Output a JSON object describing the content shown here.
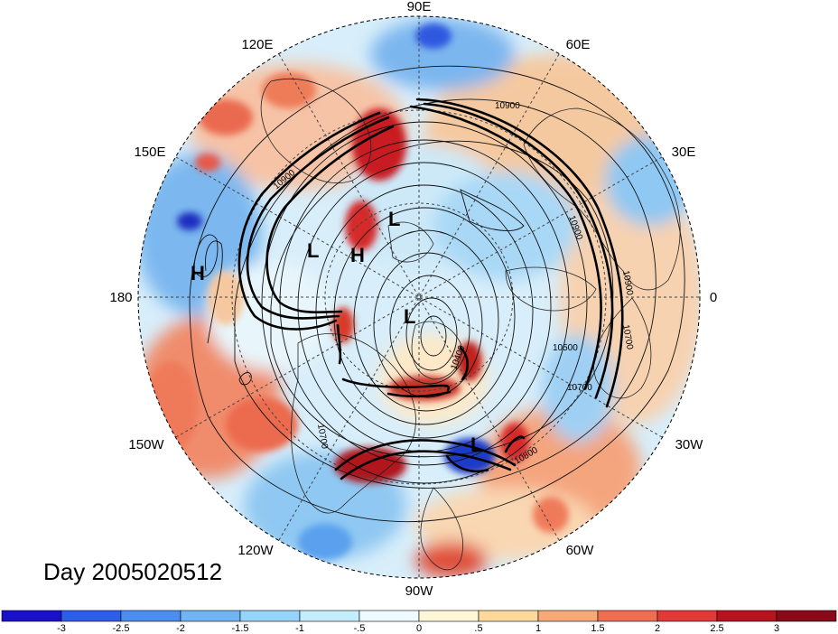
{
  "title": "Day 2005020512",
  "longitude_labels": [
    "90E",
    "60E",
    "30E",
    "0",
    "30W",
    "60W",
    "90W",
    "120W",
    "150W",
    "180",
    "150E",
    "120E"
  ],
  "pressure_markers": [
    "L",
    "L",
    "H",
    "L",
    "H",
    "L"
  ],
  "contour_labels": [
    "10900",
    "10900",
    "10900",
    "10900",
    "10700",
    "10500",
    "10400",
    "10700",
    "10800",
    "10700"
  ],
  "colorbar": {
    "tick_labels": [
      "-3",
      "-2.5",
      "-2",
      "-1.5",
      "-1",
      "-.5",
      "0",
      ".5",
      "1",
      "1.5",
      "2",
      "2.5",
      "3"
    ],
    "colors": [
      "#1a10c8",
      "#2d5ee8",
      "#4a8ff0",
      "#6fb4f5",
      "#96d4fa",
      "#c3ecfd",
      "#eefaff",
      "#fff6d8",
      "#fcd89a",
      "#f8a976",
      "#ef6e52",
      "#e03a38",
      "#b5141e",
      "#8a0a1a"
    ]
  }
}
